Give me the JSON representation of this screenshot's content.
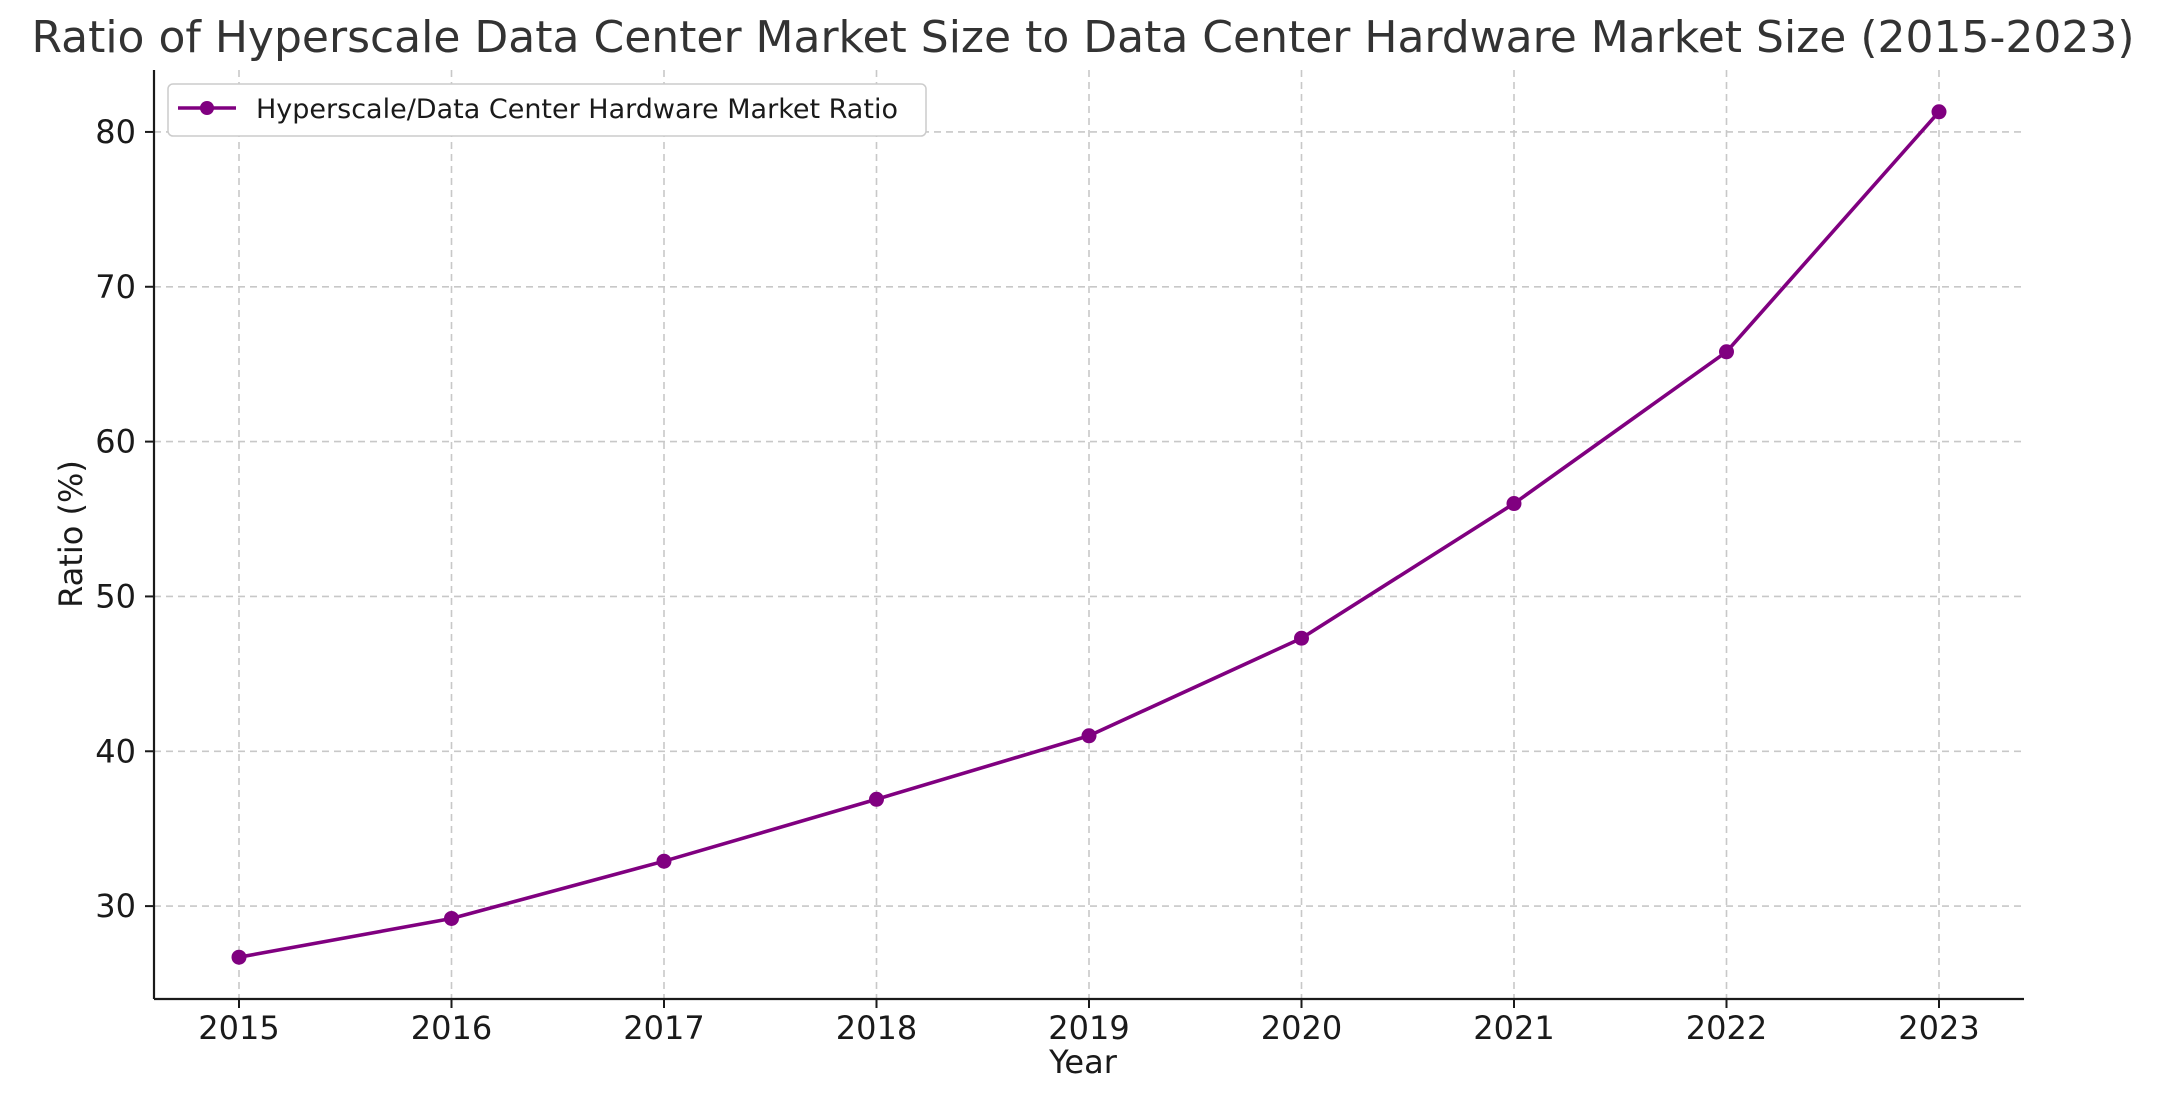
{
  "chart_data": {
    "type": "line",
    "title": "Ratio of Hyperscale Data Center Market Size to Data Center Hardware Market Size (2015-2023)",
    "xlabel": "Year",
    "ylabel": "Ratio (%)",
    "categories": [
      "2015",
      "2016",
      "2017",
      "2018",
      "2019",
      "2020",
      "2021",
      "2022",
      "2023"
    ],
    "series": [
      {
        "name": "Hyperscale/Data Center Hardware Market Ratio",
        "values": [
          26.7,
          29.2,
          32.9,
          36.9,
          41.0,
          47.3,
          56.0,
          65.8,
          81.3
        ],
        "color": "#800080",
        "marker": "circle"
      }
    ],
    "ylim": [
      24,
      84
    ],
    "yticks": [
      30,
      40,
      50,
      60,
      70,
      80
    ],
    "grid": true,
    "legend_position": "top-left"
  }
}
